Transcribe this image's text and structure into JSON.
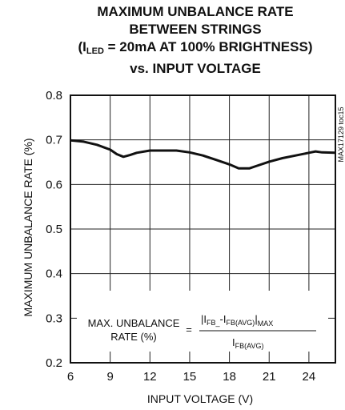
{
  "chart_data": {
    "type": "line",
    "title": {
      "line1": "MAXIMUM UNBALANCE RATE",
      "line2": "BETWEEN STRINGS",
      "line3_pre": "(I",
      "line3_sub": "LED",
      "line3_post": " = 20mA AT 100% BRIGHTNESS)",
      "line4": "vs. INPUT VOLTAGE"
    },
    "xlabel": "INPUT VOLTAGE (V)",
    "ylabel": "MAXIMUM UNBALANCE RATE (%)",
    "side_tag": "MAX17129 toc15",
    "xlim": [
      6,
      26
    ],
    "ylim": [
      0.2,
      0.8
    ],
    "xticks": [
      6,
      9,
      12,
      15,
      18,
      21,
      24
    ],
    "yticks": [
      "0.2",
      "0.3",
      "0.4",
      "0.5",
      "0.6",
      "0.7",
      "0.8"
    ],
    "grid": true,
    "series": [
      {
        "x": [
          6,
          7,
          8,
          9,
          9.5,
          10,
          10.5,
          11,
          12,
          13,
          14,
          15,
          16,
          17,
          18,
          18.7,
          19.5,
          20,
          21,
          22,
          23,
          24,
          24.5,
          25,
          26
        ],
        "y": [
          0.699,
          0.696,
          0.689,
          0.678,
          0.668,
          0.662,
          0.666,
          0.671,
          0.676,
          0.676,
          0.676,
          0.672,
          0.665,
          0.655,
          0.645,
          0.636,
          0.636,
          0.641,
          0.651,
          0.659,
          0.665,
          0.671,
          0.674,
          0.672,
          0.671
        ]
      }
    ],
    "annotation": {
      "line1": "MAX. UNBALANCE",
      "line2": "RATE (%)",
      "equals": "=",
      "numerator": "|I",
      "num_sub1": "FB_",
      "num_mid": "-I",
      "num_sub2": "FB(AVG)",
      "num_close": "|",
      "num_max": "MAX",
      "denominator": "I",
      "den_sub": "FB(AVG)"
    }
  }
}
